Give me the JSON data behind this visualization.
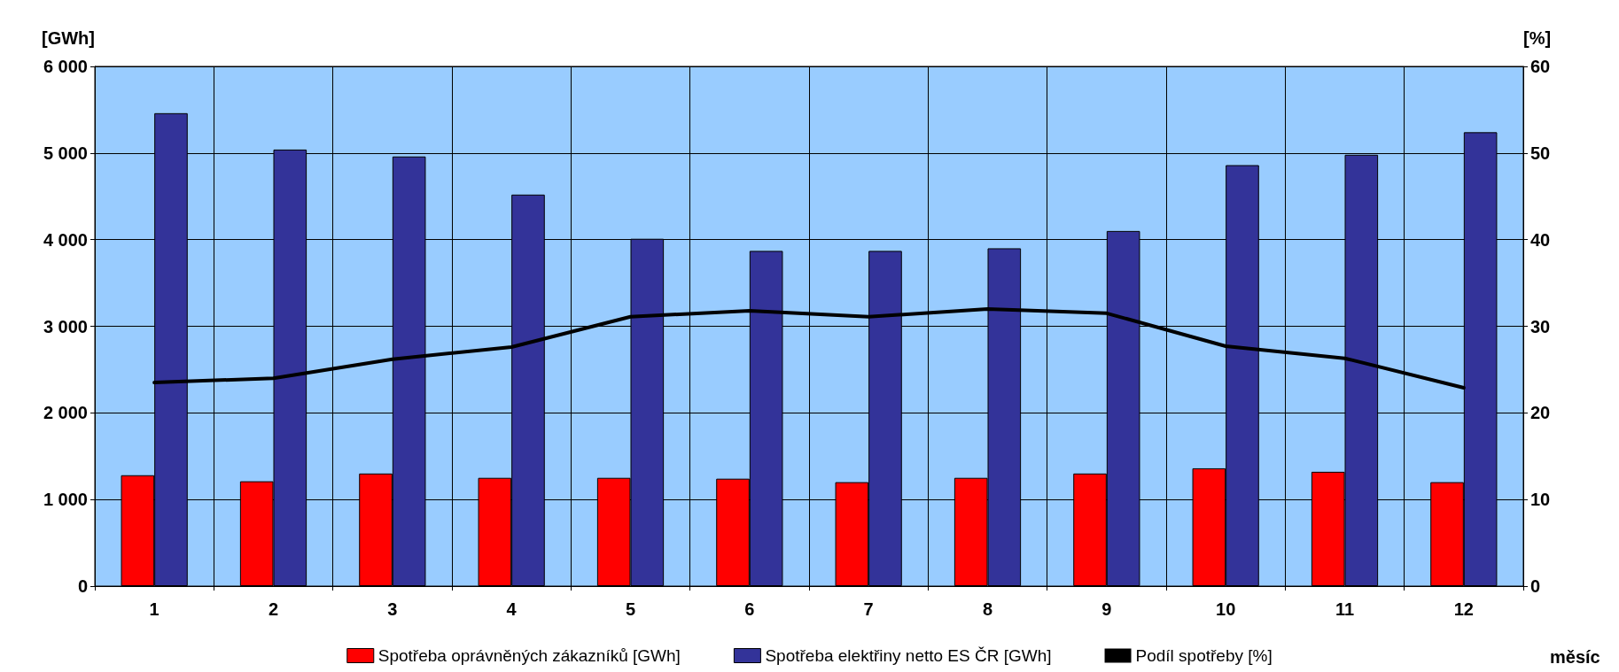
{
  "chart_data": {
    "type": "bar",
    "categories": [
      "1",
      "2",
      "3",
      "4",
      "5",
      "6",
      "7",
      "8",
      "9",
      "10",
      "11",
      "12"
    ],
    "series": [
      {
        "name": "Spotřeba oprávněných zákazníků [GWh]",
        "color": "#ff0000",
        "values": [
          1280,
          1210,
          1300,
          1250,
          1250,
          1240,
          1200,
          1250,
          1300,
          1360,
          1320,
          1200
        ]
      },
      {
        "name": "Spotřeba elektřiny netto ES ČR [GWh]",
        "color": "#333399",
        "values": [
          5460,
          5040,
          4960,
          4520,
          4010,
          3870,
          3870,
          3900,
          4100,
          4860,
          4980,
          5240
        ]
      },
      {
        "name": "Podíl spotřeby [%]",
        "type": "line",
        "axis": "y2",
        "color": "#000000",
        "values": [
          23.5,
          24.0,
          26.2,
          27.6,
          31.1,
          31.8,
          31.1,
          32.0,
          31.5,
          27.7,
          26.3,
          22.9
        ]
      }
    ],
    "ylabel": "[GWh]",
    "y2label": "[%]",
    "xlabel": "měsíc",
    "ylim": [
      0,
      6000
    ],
    "yticks": [
      0,
      {
        "value": 1000,
        "label": "1 000"
      },
      {
        "value": 2000,
        "label": "2 000"
      },
      {
        "value": 3000,
        "label": "3 000"
      },
      {
        "value": 4000,
        "label": "4 000"
      },
      {
        "value": 5000,
        "label": "5 000"
      },
      {
        "value": 6000,
        "label": "6 000"
      }
    ],
    "y2lim": [
      0,
      60
    ],
    "y2ticks": [
      0,
      10,
      20,
      30,
      40,
      50,
      60
    ],
    "grid": true,
    "legend": "bottom",
    "marker": "none",
    "line_style": "solid"
  }
}
